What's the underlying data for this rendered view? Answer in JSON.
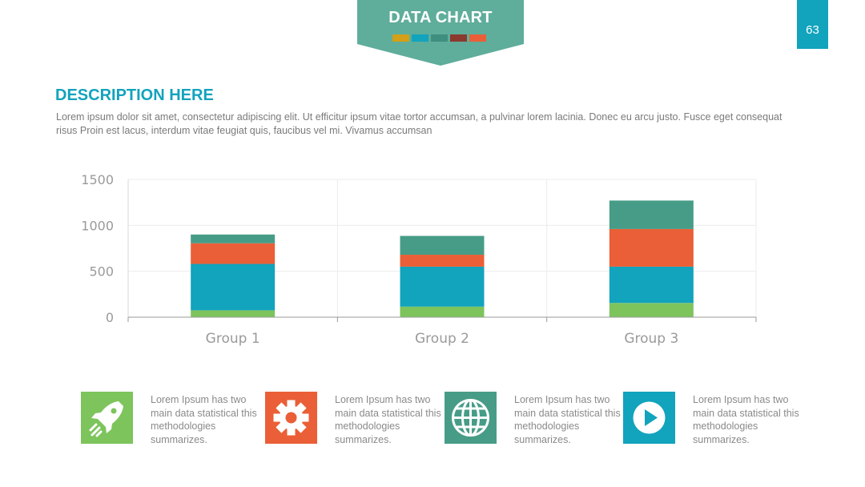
{
  "header": {
    "title": "DATA CHART",
    "swatches": [
      "#d4a017",
      "#12a3bd",
      "#3e8f7e",
      "#8b3a2f",
      "#ea5f37"
    ],
    "banner_color": "#5fad9b",
    "page_number": "63"
  },
  "description": {
    "title": "DESCRIPTION HERE",
    "text": "Lorem ipsum dolor sit amet, consectetur adipiscing elit. Ut efficitur ipsum vitae tortor accumsan, a pulvinar lorem lacinia. Donec eu arcu justo. Fusce eget consequat risus Proin est lacus, interdum vitae feugiat quis, faucibus vel mi.  Vivamus accumsan"
  },
  "chart_data": {
    "type": "bar",
    "stacked": true,
    "categories": [
      "Group 1",
      "Group 2",
      "Group 3"
    ],
    "series": [
      {
        "values": [
          75,
          115,
          155
        ],
        "color": "#7dc45c"
      },
      {
        "values": [
          505,
          435,
          395
        ],
        "color": "#12a3bd"
      },
      {
        "values": [
          225,
          130,
          410
        ],
        "color": "#ea5f37"
      },
      {
        "values": [
          95,
          205,
          310
        ],
        "color": "#479c87"
      }
    ],
    "ylim": [
      0,
      1500
    ],
    "yticks": [
      0,
      500,
      1000,
      1500
    ],
    "grid": true,
    "legend": "none"
  },
  "features": [
    {
      "icon": "rocket-icon",
      "color": "#7dc45c",
      "text": "Lorem Ipsum has two main data statistical this methodologies summarizes."
    },
    {
      "icon": "gear-icon",
      "color": "#ea5f37",
      "text": "Lorem Ipsum has two main data statistical this methodologies summarizes."
    },
    {
      "icon": "globe-icon",
      "color": "#479c87",
      "text": "Lorem Ipsum has two main data statistical this methodologies summarizes."
    },
    {
      "icon": "play-icon",
      "color": "#12a3bd",
      "text": "Lorem Ipsum has two main data statistical this methodologies summarizes."
    }
  ]
}
